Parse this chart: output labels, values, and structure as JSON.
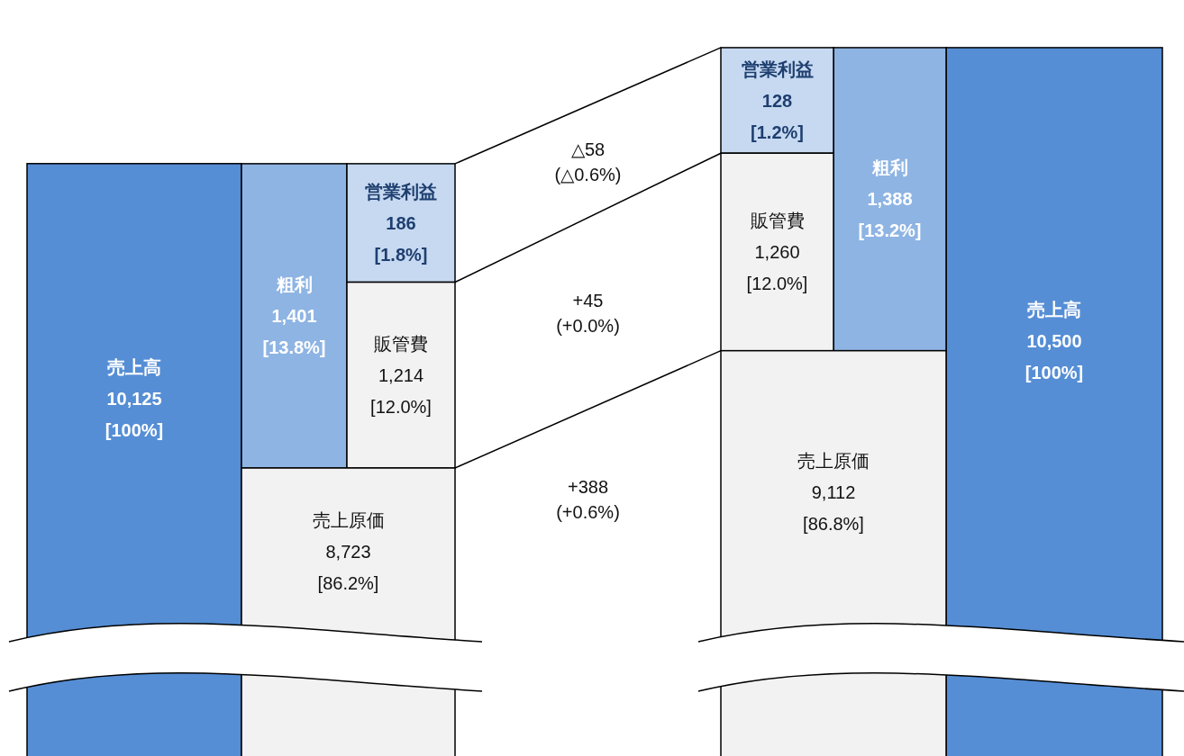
{
  "chart_data": {
    "type": "other",
    "categories": [
      "売上高",
      "粗利",
      "営業利益",
      "販管費",
      "売上原価"
    ],
    "series": [
      {
        "colors": [
          "#558ed5",
          "#8eb4e3",
          "#c6d9f1",
          "#f2f2f2",
          "#f2f2f2"
        ],
        "values": [
          10125,
          1401,
          186,
          1214,
          8723
        ],
        "value_labels": [
          "10,125",
          "1,401",
          "186",
          "1,214",
          "8,723"
        ]
      },
      {
        "colors": [
          "#558ed5",
          "#8eb4e3",
          "#c6d9f1",
          "#f2f2f2",
          "#f2f2f2"
        ],
        "values": [
          10500,
          1388,
          128,
          1260,
          9112
        ],
        "value_labels": [
          "10,500",
          "1,388",
          "128",
          "1,260",
          "9,112"
        ]
      }
    ],
    "annotations": [
      "△58\n(△0.6%)",
      "+45\n(+0.0%)",
      "+388\n(+0.6%)",
      "[100%]",
      "[13.8%]",
      "[1.8%]",
      "[12.0%]",
      "[86.2%]",
      "[100%]",
      "[13.2%]",
      "[1.2%]",
      "[12.0%]",
      "[86.8%]"
    ]
  }
}
